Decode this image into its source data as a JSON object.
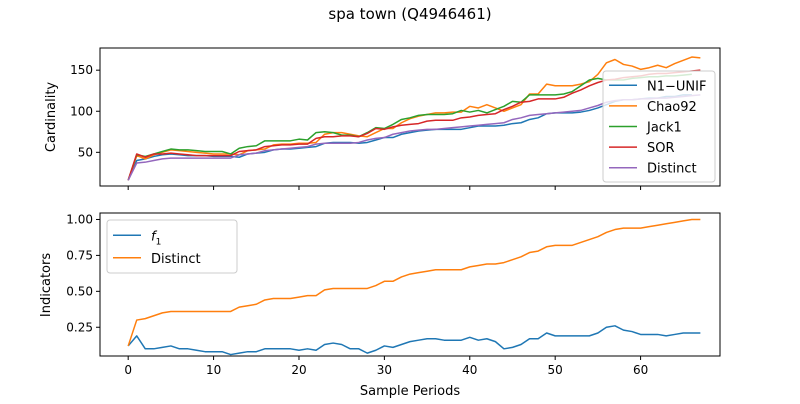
{
  "figure": {
    "title": "spa town (Q4946461)"
  },
  "chart_data": [
    {
      "type": "line",
      "ylabel": "Cardinality",
      "xlabel": "",
      "xlim": [
        -3.3,
        69.3
      ],
      "ylim": [
        9,
        177
      ],
      "xticks": [
        0,
        10,
        20,
        30,
        40,
        50,
        60
      ],
      "yticks": [
        50,
        100,
        150
      ],
      "ytick_labels": [
        "50",
        "100",
        "150"
      ],
      "show_xtick_labels": false,
      "grid": false,
      "legend_position": "right",
      "series": [
        {
          "name": "N1−UNIF",
          "color": "#1f77b4",
          "values": [
            16,
            40,
            42,
            45,
            47,
            48,
            47,
            46,
            46,
            46,
            45,
            45,
            45,
            44,
            48,
            49,
            50,
            53,
            54,
            54,
            55,
            56,
            57,
            61,
            62,
            62,
            62,
            61,
            62,
            65,
            68,
            68,
            72,
            74,
            76,
            77,
            78,
            78,
            78,
            78,
            80,
            82,
            82,
            82,
            83,
            85,
            86,
            90,
            92,
            97,
            98,
            98,
            98,
            99,
            101,
            104,
            108,
            112,
            114,
            114,
            115,
            116,
            116,
            118,
            118,
            120,
            120
          ]
        },
        {
          "name": "Chao92",
          "color": "#ff7f0e",
          "values": [
            16,
            46,
            42,
            47,
            50,
            53,
            52,
            51,
            50,
            49,
            48,
            48,
            48,
            47,
            52,
            53,
            54,
            59,
            60,
            60,
            61,
            61,
            62,
            72,
            74,
            74,
            72,
            70,
            69,
            74,
            79,
            79,
            86,
            91,
            94,
            96,
            98,
            98,
            99,
            99,
            106,
            104,
            108,
            104,
            100,
            104,
            108,
            121,
            121,
            133,
            131,
            131,
            131,
            133,
            136,
            145,
            159,
            163,
            157,
            155,
            151,
            153,
            156,
            153,
            158,
            162,
            166,
            165
          ]
        },
        {
          "name": "Jack1",
          "color": "#2ca02c",
          "values": [
            16,
            47,
            45,
            48,
            51,
            54,
            53,
            53,
            52,
            51,
            51,
            51,
            48,
            55,
            57,
            58,
            64,
            64,
            64,
            64,
            66,
            65,
            74,
            75,
            74,
            71,
            71,
            69,
            74,
            80,
            79,
            84,
            90,
            92,
            95,
            96,
            96,
            96,
            97,
            101,
            99,
            101,
            98,
            102,
            106,
            112,
            111,
            120,
            120,
            120,
            120,
            121,
            124,
            131,
            138,
            140,
            138,
            138,
            138,
            140,
            141,
            142,
            142,
            143,
            143,
            144,
            145
          ]
        },
        {
          "name": "SOR",
          "color": "#d62728",
          "values": [
            16,
            48,
            44,
            48,
            48,
            49,
            48,
            47,
            46,
            46,
            46,
            46,
            46,
            51,
            52,
            53,
            57,
            58,
            59,
            59,
            60,
            60,
            67,
            69,
            69,
            70,
            70,
            69,
            73,
            79,
            78,
            81,
            83,
            84,
            85,
            88,
            89,
            89,
            89,
            92,
            93,
            95,
            96,
            97,
            102,
            106,
            111,
            112,
            115,
            115,
            115,
            117,
            122,
            126,
            131,
            135,
            138,
            139,
            141,
            142,
            143,
            145,
            146,
            146,
            147,
            148,
            149,
            150
          ]
        },
        {
          "name": "Distinct",
          "color": "#9467bd",
          "values": [
            16,
            37,
            38,
            40,
            42,
            43,
            43,
            43,
            43,
            43,
            43,
            43,
            43,
            47,
            48,
            49,
            52,
            53,
            54,
            55,
            56,
            57,
            60,
            61,
            61,
            61,
            61,
            62,
            65,
            67,
            68,
            72,
            74,
            76,
            77,
            78,
            78,
            79,
            80,
            81,
            82,
            83,
            84,
            85,
            86,
            90,
            92,
            95,
            96,
            97,
            98,
            99,
            100,
            101,
            104,
            107,
            111,
            113,
            114,
            114,
            115,
            115,
            116,
            116,
            117,
            118,
            119,
            120
          ]
        }
      ]
    },
    {
      "type": "line",
      "ylabel": "Indicators",
      "xlabel": "Sample Periods",
      "xlim": [
        -3.3,
        69.3
      ],
      "ylim": [
        0.05,
        1.045
      ],
      "xticks": [
        0,
        10,
        20,
        30,
        40,
        50,
        60
      ],
      "xtick_labels": [
        "0",
        "10",
        "20",
        "30",
        "40",
        "50",
        "60"
      ],
      "yticks": [
        0.25,
        0.5,
        0.75,
        1.0
      ],
      "ytick_labels": [
        "0.25",
        "0.50",
        "0.75",
        "1.00"
      ],
      "show_xtick_labels": true,
      "grid": false,
      "legend_position": "upper-left",
      "series": [
        {
          "name_base": "f",
          "name_sub": "1",
          "color": "#1f77b4",
          "values": [
            0.12,
            0.19,
            0.1,
            0.1,
            0.11,
            0.12,
            0.1,
            0.1,
            0.09,
            0.08,
            0.08,
            0.08,
            0.06,
            0.07,
            0.08,
            0.08,
            0.1,
            0.1,
            0.1,
            0.1,
            0.09,
            0.1,
            0.09,
            0.13,
            0.14,
            0.13,
            0.1,
            0.1,
            0.07,
            0.09,
            0.12,
            0.11,
            0.13,
            0.15,
            0.16,
            0.17,
            0.17,
            0.16,
            0.16,
            0.16,
            0.18,
            0.16,
            0.17,
            0.15,
            0.1,
            0.11,
            0.13,
            0.17,
            0.17,
            0.21,
            0.19,
            0.19,
            0.19,
            0.19,
            0.19,
            0.21,
            0.25,
            0.26,
            0.23,
            0.22,
            0.2,
            0.2,
            0.2,
            0.19,
            0.2,
            0.21,
            0.21,
            0.21
          ]
        },
        {
          "name": "Distinct",
          "color": "#ff7f0e",
          "values": [
            0.12,
            0.3,
            0.31,
            0.33,
            0.35,
            0.36,
            0.36,
            0.36,
            0.36,
            0.36,
            0.36,
            0.36,
            0.36,
            0.39,
            0.4,
            0.41,
            0.44,
            0.45,
            0.45,
            0.45,
            0.46,
            0.47,
            0.47,
            0.51,
            0.52,
            0.52,
            0.52,
            0.52,
            0.52,
            0.54,
            0.57,
            0.57,
            0.6,
            0.62,
            0.63,
            0.64,
            0.65,
            0.65,
            0.65,
            0.65,
            0.67,
            0.68,
            0.69,
            0.69,
            0.7,
            0.72,
            0.74,
            0.77,
            0.78,
            0.81,
            0.82,
            0.82,
            0.82,
            0.84,
            0.86,
            0.88,
            0.91,
            0.93,
            0.94,
            0.94,
            0.94,
            0.95,
            0.96,
            0.97,
            0.98,
            0.99,
            1.0,
            1.0
          ]
        }
      ]
    }
  ]
}
